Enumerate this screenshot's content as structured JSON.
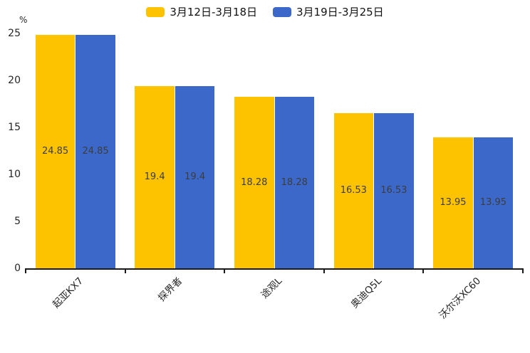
{
  "chart_data": {
    "type": "bar",
    "title": "",
    "unit_label": "%",
    "categories": [
      "起亚KX7",
      "探界者",
      "途观L",
      "奥迪Q5L",
      "沃尔沃XC60"
    ],
    "series": [
      {
        "name": "3月12日-3月18日",
        "color": "#FDC300",
        "values": [
          24.85,
          19.4,
          18.28,
          16.53,
          13.95
        ]
      },
      {
        "name": "3月19日-3月25日",
        "color": "#3B68C9",
        "values": [
          24.85,
          19.4,
          18.28,
          16.53,
          13.95
        ]
      }
    ],
    "ylim": [
      0,
      25
    ],
    "yticks": [
      0,
      5,
      10,
      15,
      20,
      25
    ],
    "grid": false,
    "legend_position": "top-center",
    "value_labels": "inside-center"
  },
  "colors": {
    "background": "#FFFFFF",
    "axis": "#1A1A1A",
    "tick_label": "#262626",
    "value_label": "#3D3D3D"
  }
}
